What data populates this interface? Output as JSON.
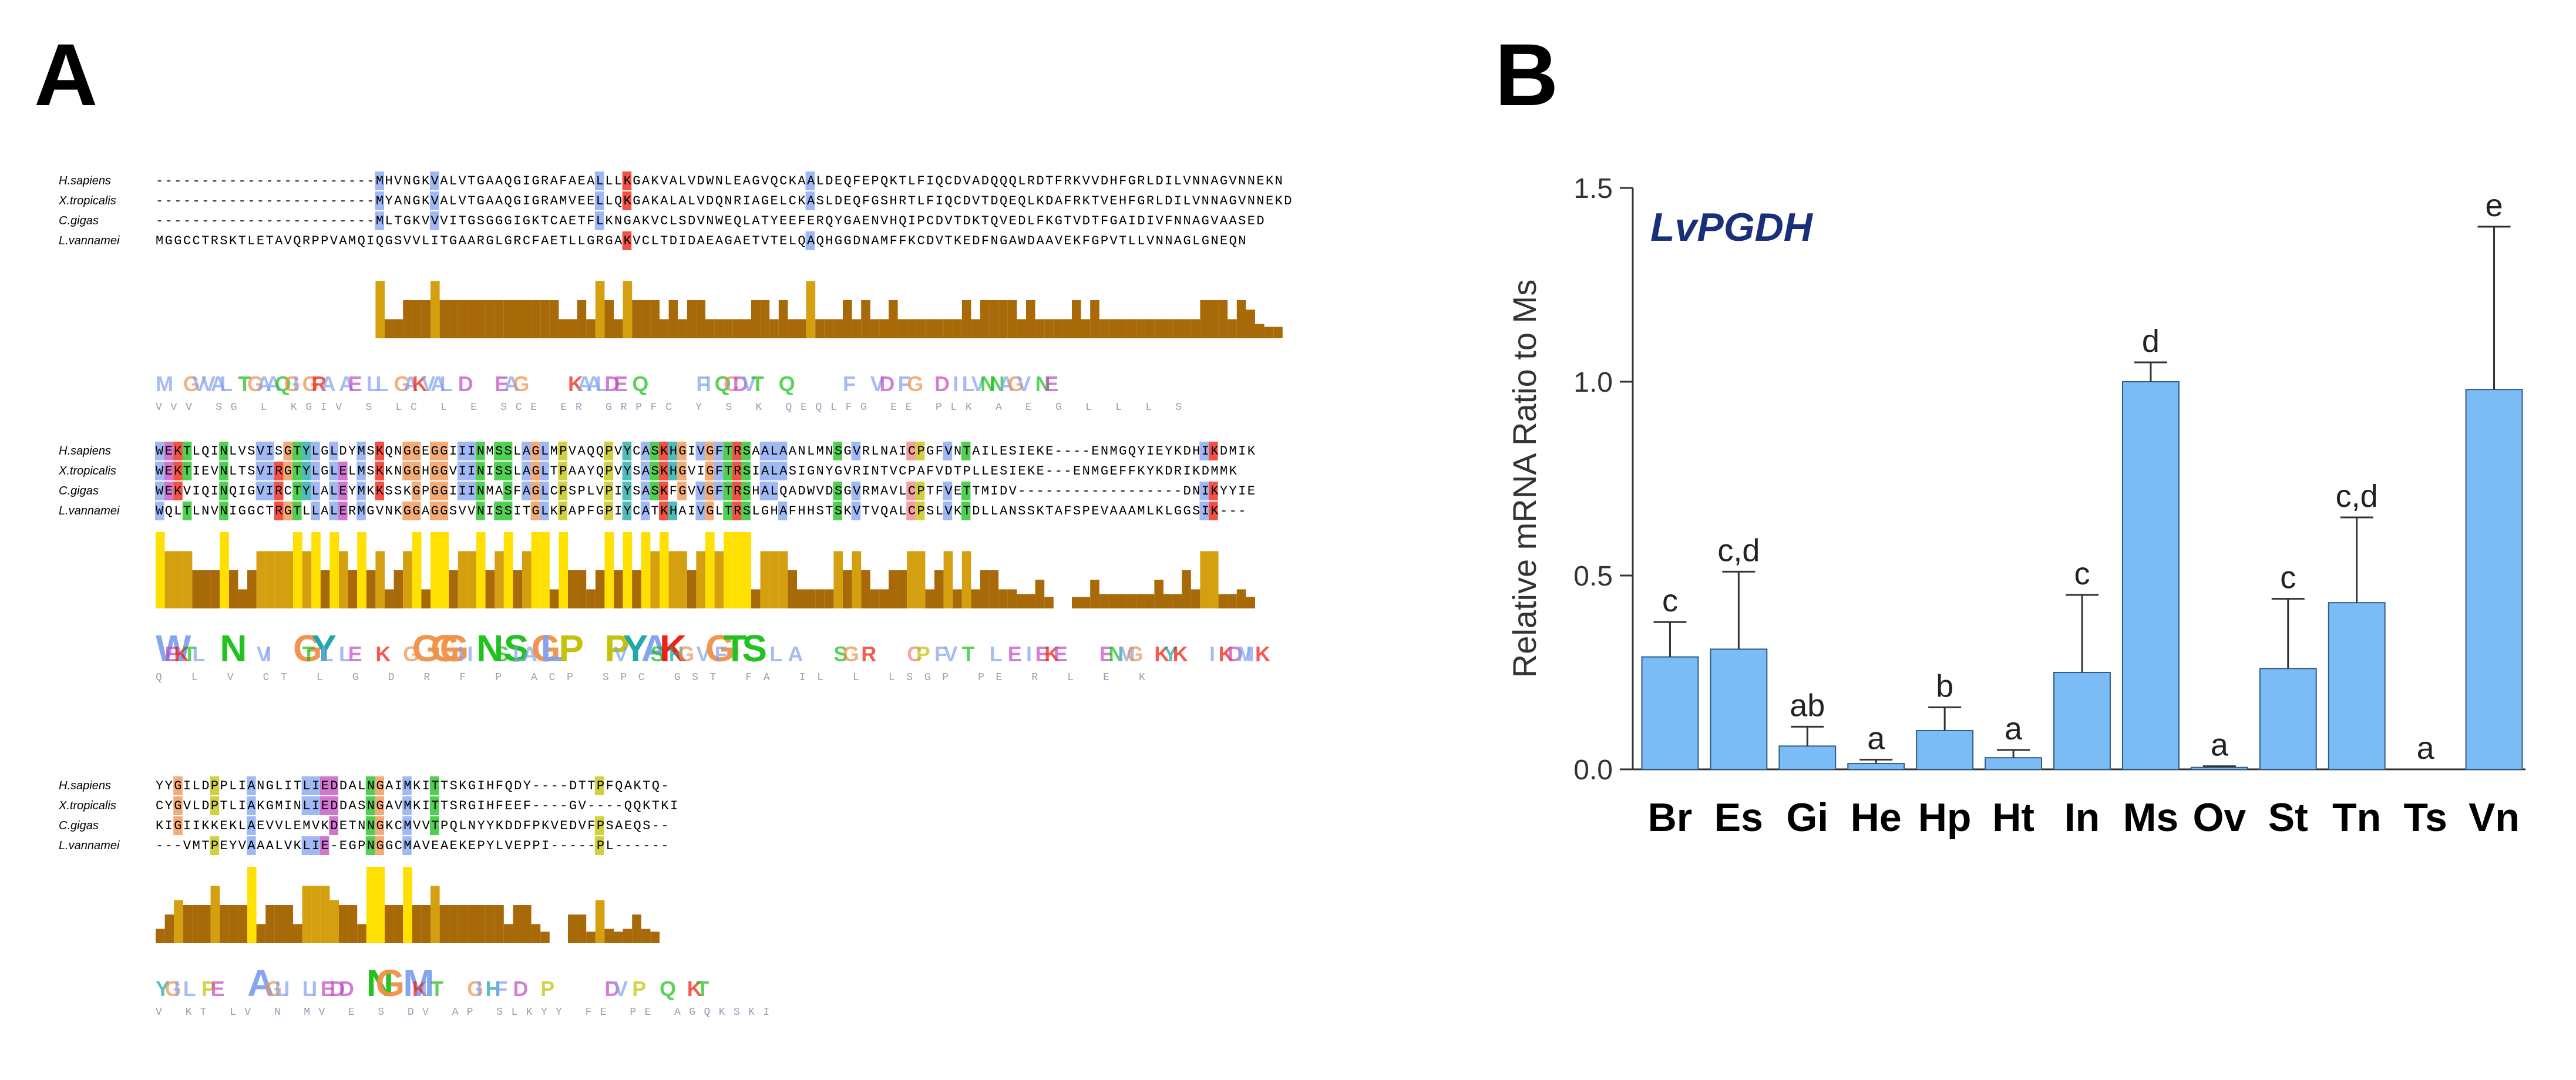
{
  "panel_labels": {
    "a": "A",
    "b": "B"
  },
  "alignment": {
    "blocks": [
      {
        "rows": [
          {
            "species": "H.sapiens",
            "seq": "------------------------MHVNGKVALVTGAAQGIGRAFAEALLLKGAKVALVDWNLEAGVQCKAALDEQFEPQKTLFIQCDVADQQQLRDTFRKVVDHFGRLDILVNNAGVNNEKN"
          },
          {
            "species": "X.tropicalis",
            "seq": "------------------------MYANGKVALVTGAAQGIGRAMVEELLQKGAKALALVDQNRIAGELCKASLDEQFGSHRTLFIQCDVTDQEQLKDAFRKTVEHFGRLDILVNNAGVNNEKD"
          },
          {
            "species": "C.gigas",
            "seq": "------------------------MLTGKVVVITGSGGGIGKTCAETFLKNGAKVCLSDVNWEQLATYEEFERQYGAENVHQIPCDVTDKTQVEDLFKGTVDTFGAIDIVFNNAGVAASED"
          },
          {
            "species": "L.vannamei",
            "seq": "MGGCCTRSKTLETAVQRPPVAMQIQGSVVLITGAARGLGRCFAETLLGRGAKVCLTDIDAEAGAETVTELQAQHGGDNAMFFKCDVTKEDFNGAWDAAVEKFGPVTLLVNNAGLGNEQN"
          }
        ],
        "logo_top": "M  GVVAL TGAAQGIGRA AE LL GAKVAL D   EAG     KAALDE Q      FIQCDVT  Q      F  VD FG  D ILVNNAGV NE",
        "logo_bottom": "             VVV   SG  L KGIV  S  LC   L    E   SCE    ER GRPFC   Y S    K  QEQLFG EE   PLK   A  E G  L  L   L S"
      },
      {
        "rows": [
          {
            "species": "H.sapiens",
            "seq": "WEKTLQINLVSVISGTYLGLDYMSKQNGGEGGIIINMSSLAGLMPVAQQPVYCASKHGIVGFTRSAALAANLMNSGVRLNAICPGFVNTAILESIEKE----ENMGQYIEYKDHIKDMIK"
          },
          {
            "species": "X.tropicalis",
            "seq": "WEKTIEVNLTSVIRGTYLGLELMSKKNGGHGGVIINISSLAGLTPAAYQPVYSASKHGVIGFTRSIALASIGNYGVRINTVCPAFVDTPLLESIEKE---ENMGEFFKYKDRIKDMMK"
          },
          {
            "species": "C.gigas",
            "seq": "WEKVIQINQIGVIRCTYLALEYMKKSSKGPGGIIINMASFAGLCPSPLVPIYSASKFGVVGFTRSHALQADWVDSGVRMAVLCPTFVETTMIDV------------------DNIKYYIE"
          },
          {
            "species": "L.vannamei",
            "seq": "WQLTLNVNIGGCTRGTLLALERMGVNKGGAGGSVVNISSITGLKPAPFGPIYCATKHAIVGLTRSLGHAFHHSTSKVTVQALCPSLVKTDLLANSSKTAFSPEVAAAMLKLGGSIK---"
          }
        ],
        "logo_top": "WEKTL  N   VI  GTYL LE  K  GG GG IIN SSLAGL P    PVY ASKHG VGFT S  L A    SG R    CP FV T  L E IEKE    ENMG  KYK   IKDMIK",
        "logo_bottom": "  Q  L  V   CT   L  G  D  R    F       P      ACP  SPC   GST  FA IL L   LSGP  PE  R         L   E       K   "
      },
      {
        "rows": [
          {
            "species": "H.sapiens",
            "seq": "YYGILDPPLIANGLITLIEDDALNGAIMKITTSKGIHFQDY----DTTPFQAKTQ-"
          },
          {
            "species": "X.tropicalis",
            "seq": "CYGVLDPTLIAKGMINLIEDDASNGAVMKITTSRGIHFEEF----GV----QQKTKI"
          },
          {
            "species": "C.gigas",
            "seq": "KIGIIKKEKLAEVVLEMVKDETNNGKCMVVTPQLNYYKDDFPKVEDVFPSAEQS--"
          },
          {
            "species": "L.vannamei",
            "seq": "---VMTPEYVAAALVKLIE-EGPNGGCMAVEAEKEPYLVEPPI-----PL------"
          }
        ],
        "logo_top": "YGIL PE   A GLI LIEDD  NG  MKIT   GIHF D  P      DV P  Q  KT",
        "logo_bottom": "  V  KT   LV  N   MV   E  S   DV  AP SLKYY FE    PE         AGQKSKI"
      }
    ]
  },
  "chart_data": {
    "type": "bar",
    "title": "LvPGDH",
    "ylabel": "Relative  mRNA Ratio to Ms",
    "xlabel": "",
    "ylim": [
      0,
      1.5
    ],
    "yticks": [
      0.0,
      0.5,
      1.0,
      1.5
    ],
    "ytick_labels": [
      "0.0",
      "0.5",
      "1.0",
      "1.5"
    ],
    "categories": [
      "Br",
      "Es",
      "Gi",
      "He",
      "Hp",
      "Ht",
      "In",
      "Ms",
      "Ov",
      "St",
      "Tn",
      "Ts",
      "Vn"
    ],
    "values": [
      0.29,
      0.31,
      0.06,
      0.015,
      0.1,
      0.03,
      0.25,
      1.0,
      0.005,
      0.26,
      0.43,
      0.0,
      0.98
    ],
    "errors": [
      0.09,
      0.2,
      0.05,
      0.01,
      0.06,
      0.02,
      0.2,
      0.05,
      0.003,
      0.18,
      0.22,
      0.0,
      0.42
    ],
    "significance_letters": [
      "c",
      "c,d",
      "ab",
      "a",
      "b",
      "a",
      "c",
      "d",
      "a",
      "c",
      "c,d",
      "a",
      "e"
    ],
    "bar_color": "#7cbcf6",
    "bar_stroke": "#2f5b86",
    "title_color": "#1a2f7a",
    "grid": false,
    "legend": "none"
  }
}
